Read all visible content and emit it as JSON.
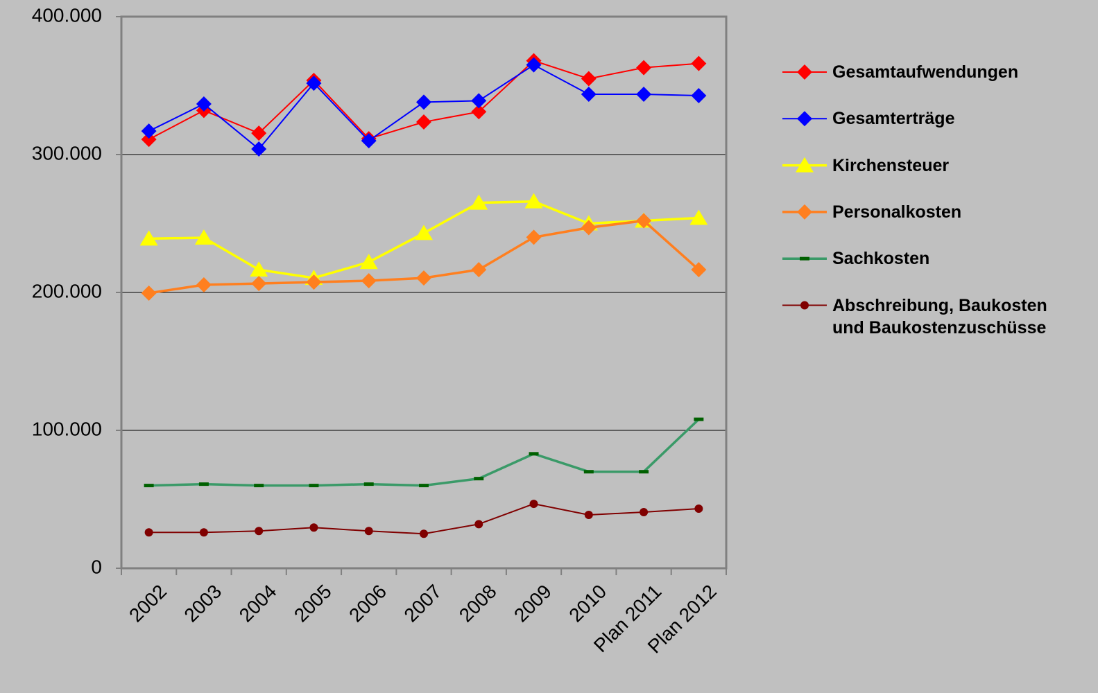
{
  "chart_data": {
    "type": "line",
    "categories": [
      "2002",
      "2003",
      "2004",
      "2005",
      "2006",
      "2007",
      "2008",
      "2009",
      "2010",
      "Plan 2011",
      "Plan 2012"
    ],
    "ylim": [
      0,
      400000
    ],
    "yticks": [
      0,
      {
        "value": 100000,
        "label": "100.000"
      },
      {
        "value": 200000,
        "label": "200.000"
      },
      {
        "value": 300000,
        "label": "300.000"
      },
      {
        "value": 400000,
        "label": "400.000"
      }
    ],
    "grid": true,
    "legend": "right",
    "series": [
      {
        "name": "Gesamtaufwendungen",
        "color": "#ff0000",
        "marker": "diamond",
        "values": [
          311000,
          332000,
          315500,
          353800,
          311500,
          323600,
          331000,
          368000,
          355000,
          363000,
          366000
        ]
      },
      {
        "name": "Gesamterträge",
        "color": "#0000ff",
        "marker": "diamond",
        "values": [
          317000,
          336700,
          304000,
          351700,
          310000,
          338000,
          339000,
          365000,
          343700,
          343700,
          342700
        ]
      },
      {
        "name": "Kirchensteuer",
        "color": "#ffff00",
        "marker": "triangle",
        "values": [
          239000,
          239700,
          216500,
          210500,
          222000,
          243000,
          265000,
          266000,
          250000,
          252000,
          254000
        ]
      },
      {
        "name": "Personalkosten",
        "color": "#ff7f1f",
        "marker": "diamond",
        "values": [
          199500,
          205500,
          206500,
          207500,
          208500,
          210500,
          216500,
          240000,
          247000,
          252000,
          216500
        ]
      },
      {
        "name": "Sachkosten",
        "color": "#3a9a68",
        "marker": "dash",
        "values": [
          60000,
          61000,
          60000,
          60000,
          61000,
          60000,
          65000,
          83000,
          70000,
          70000,
          108000
        ]
      },
      {
        "name": "Abschreibung, Baukosten und Baukostenzuschüsse",
        "color": "#800000",
        "marker": "circle",
        "values": [
          26000,
          26000,
          27000,
          29500,
          27000,
          25000,
          32000,
          46700,
          38700,
          40700,
          43200
        ]
      }
    ]
  }
}
